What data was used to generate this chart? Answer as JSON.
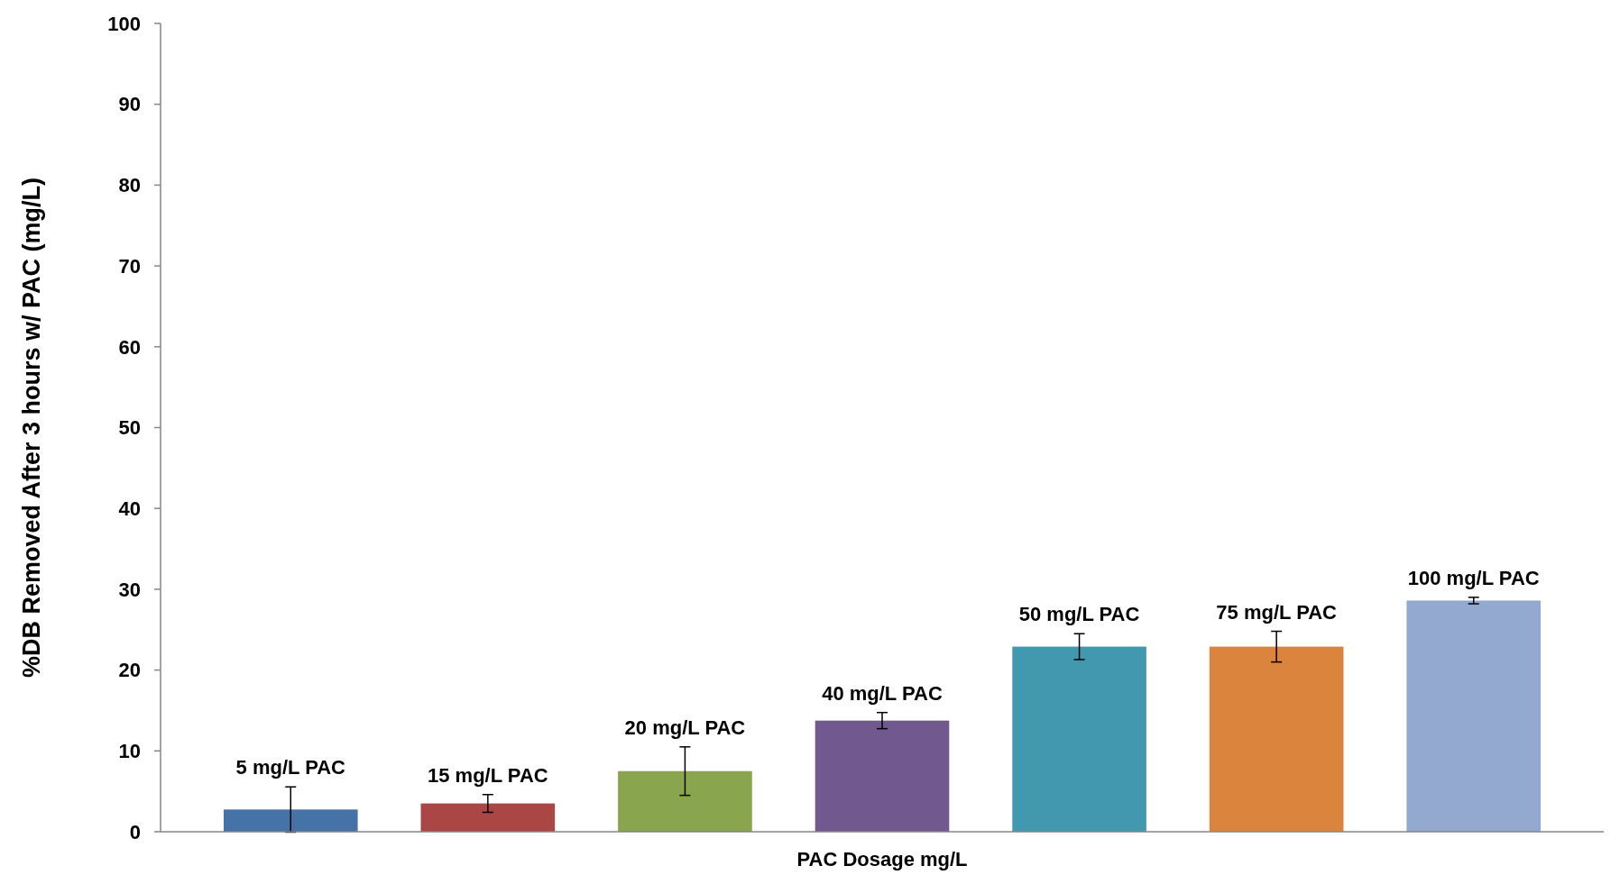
{
  "chart_data": {
    "type": "bar",
    "categories": [
      "5 mg/L PAC",
      "15 mg/L PAC",
      "20 mg/L PAC",
      "40 mg/L PAC",
      "50 mg/L PAC",
      "75 mg/L PAC",
      "100 mg/L PAC"
    ],
    "values": [
      2.75,
      3.5,
      7.5,
      13.75,
      22.9,
      22.9,
      28.6
    ],
    "errors": [
      2.8,
      1.1,
      3,
      1,
      1.6,
      1.9,
      0.4
    ],
    "colors": [
      "#4572a7",
      "#aa4643",
      "#89a54e",
      "#71588f",
      "#4198af",
      "#db843d",
      "#93a9cf"
    ],
    "xlabel": "PAC Dosage mg/L",
    "ylabel": "%DB Removed After 3 hours w/ PAC (mg/L)",
    "ylim": [
      0,
      100
    ],
    "yticks": [
      0,
      10,
      20,
      30,
      40,
      50,
      60,
      70,
      80,
      90,
      100
    ],
    "grid": false
  }
}
